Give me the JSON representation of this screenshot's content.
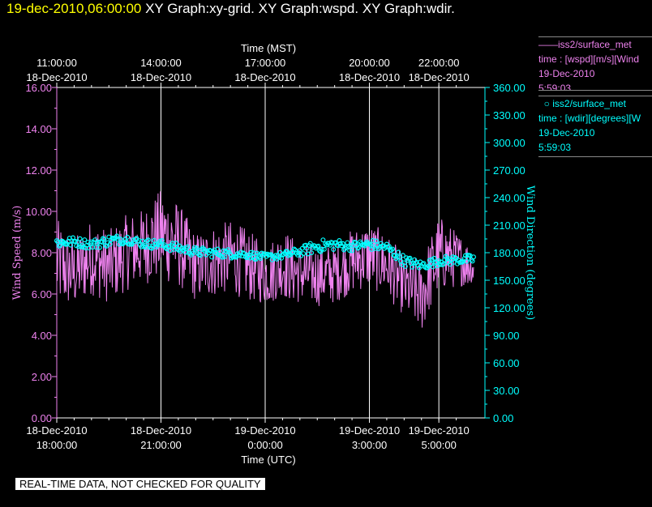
{
  "title": {
    "date": "19-dec-2010,06:00:00",
    "graphs": [
      "XY Graph:xy-grid.",
      "XY Graph:wspd.",
      "XY Graph:wdir."
    ]
  },
  "legend": {
    "wspd": {
      "name": "iss2/surface_met",
      "desc": "time : [wspd][m/s][Wind",
      "date": "19-Dec-2010",
      "time": "5:59:03",
      "color": "#ee82ee"
    },
    "wdir": {
      "name": "iss2/surface_met",
      "desc": "time : [wdir][degrees][W",
      "date": "19-Dec-2010",
      "time": "5:59:03",
      "color": "#00ffff"
    }
  },
  "quality_note": "REAL-TIME DATA, NOT CHECKED FOR QUALITY",
  "chart_data": {
    "type": "line",
    "x_range_hours_utc": [
      0,
      12.0
    ],
    "top_axis": {
      "label": "Time (MST)",
      "ticks": [
        {
          "at": 0.0,
          "line1": "11:00:00",
          "line2": "18-Dec-2010"
        },
        {
          "at": 3.0,
          "line1": "14:00:00",
          "line2": "18-Dec-2010"
        },
        {
          "at": 6.0,
          "line1": "17:00:00",
          "line2": "18-Dec-2010"
        },
        {
          "at": 9.0,
          "line1": "20:00:00",
          "line2": "18-Dec-2010"
        },
        {
          "at": 11.0,
          "line1": "22:00:00",
          "line2": "18-Dec-2010"
        }
      ]
    },
    "bottom_axis": {
      "label": "Time (UTC)",
      "ticks": [
        {
          "at": 0.0,
          "line1": "18-Dec-2010",
          "line2": "18:00:00"
        },
        {
          "at": 3.0,
          "line1": "18-Dec-2010",
          "line2": "21:00:00"
        },
        {
          "at": 6.0,
          "line1": "19-Dec-2010",
          "line2": "0:00:00"
        },
        {
          "at": 9.0,
          "line1": "19-Dec-2010",
          "line2": "3:00:00"
        },
        {
          "at": 11.0,
          "line1": "19-Dec-2010",
          "line2": "5:00:00"
        }
      ]
    },
    "left_axis": {
      "label": "Wind Speed (m/s)",
      "ylim": [
        0,
        16
      ],
      "ticks": [
        "0.00",
        "2.00",
        "4.00",
        "6.00",
        "8.00",
        "10.00",
        "12.00",
        "14.00",
        "16.00"
      ],
      "color": "#ee82ee"
    },
    "right_axis": {
      "label": "Wind Direction (degrees)",
      "ylim": [
        0,
        360
      ],
      "ticks": [
        "0.00",
        "30.00",
        "60.00",
        "90.00",
        "120.00",
        "150.00",
        "180.00",
        "210.00",
        "240.00",
        "270.00",
        "300.00",
        "330.00",
        "360.00"
      ],
      "color": "#00ffff"
    },
    "grid": "vertical lines at top-axis ticks",
    "series": [
      {
        "name": "iss2/surface_met wspd",
        "axis": "left",
        "style": "line",
        "x": [
          0.0,
          0.5,
          1.0,
          1.5,
          2.0,
          2.5,
          3.0,
          3.5,
          4.0,
          4.5,
          5.0,
          5.5,
          6.0,
          6.5,
          7.0,
          7.5,
          8.0,
          8.5,
          9.0,
          9.5,
          10.0,
          10.5,
          11.0,
          11.5,
          12.0
        ],
        "values": [
          7.5,
          7.0,
          7.8,
          7.3,
          8.0,
          8.3,
          8.9,
          8.4,
          7.3,
          7.6,
          7.8,
          7.4,
          6.9,
          7.4,
          7.0,
          6.9,
          7.0,
          7.6,
          7.9,
          7.4,
          6.4,
          5.9,
          7.9,
          7.7,
          7.3
        ],
        "min": [
          5.0,
          5.3,
          5.9,
          5.6,
          6.0,
          6.3,
          6.2,
          6.0,
          5.6,
          5.8,
          5.9,
          5.6,
          5.4,
          6.0,
          5.5,
          5.2,
          5.6,
          6.0,
          6.2,
          5.8,
          4.8,
          4.3,
          6.5,
          6.3,
          6.6
        ],
        "max": [
          9.6,
          9.0,
          9.8,
          9.4,
          9.9,
          10.2,
          11.0,
          10.4,
          9.1,
          9.5,
          9.6,
          9.3,
          8.4,
          10.0,
          8.6,
          8.4,
          8.7,
          9.3,
          9.6,
          9.1,
          7.9,
          8.2,
          10.6,
          9.2,
          8.8
        ]
      },
      {
        "name": "iss2/surface_met wdir",
        "axis": "right",
        "style": "markers",
        "x": [
          0.0,
          0.5,
          1.0,
          1.5,
          2.0,
          2.5,
          3.0,
          3.5,
          4.0,
          4.5,
          5.0,
          5.5,
          6.0,
          6.5,
          7.0,
          7.5,
          8.0,
          8.5,
          9.0,
          9.5,
          10.0,
          10.5,
          11.0,
          11.5,
          12.0
        ],
        "values": [
          191,
          192,
          189,
          193,
          195,
          190,
          189,
          185,
          181,
          180,
          179,
          178,
          175,
          177,
          181,
          187,
          189,
          187,
          189,
          186,
          171,
          166,
          171,
          172,
          173
        ],
        "spread": [
          6,
          5,
          5,
          6,
          5,
          5,
          5,
          5,
          5,
          5,
          5,
          4,
          4,
          4,
          5,
          7,
          6,
          5,
          6,
          5,
          6,
          5,
          5,
          5,
          5
        ]
      }
    ]
  }
}
